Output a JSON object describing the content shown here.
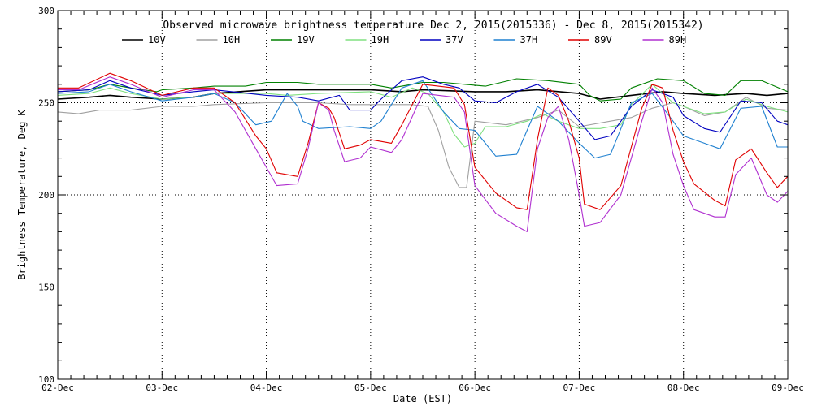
{
  "chart_data": {
    "type": "line",
    "title": "Observed microwave brightness temperature Dec  2, 2015(2015336) - Dec  8, 2015(2015342)",
    "xlabel": "Date (EST)",
    "ylabel": "Brightness Temperature, Deg K",
    "xlim": [
      0,
      7
    ],
    "ylim": [
      100,
      300
    ],
    "grid": true,
    "grid_style": "dotted",
    "legend_position": "top",
    "x_tick_labels": [
      "02-Dec",
      "03-Dec",
      "04-Dec",
      "05-Dec",
      "06-Dec",
      "07-Dec",
      "08-Dec",
      "09-Dec"
    ],
    "y_ticks": [
      100,
      150,
      200,
      250,
      300
    ],
    "y_tick_labels": [
      "100",
      "150",
      "200",
      "250",
      "300"
    ],
    "x_unit": "days since 02-Dec 00:00 EST",
    "series": [
      {
        "name": "10V",
        "color": "#000000",
        "points": [
          [
            0,
            252
          ],
          [
            0.3,
            253
          ],
          [
            0.5,
            254
          ],
          [
            0.7,
            253
          ],
          [
            1.0,
            252
          ],
          [
            1.3,
            253
          ],
          [
            1.5,
            255
          ],
          [
            2.0,
            257
          ],
          [
            2.5,
            257
          ],
          [
            3.0,
            257
          ],
          [
            3.3,
            256
          ],
          [
            3.5,
            257
          ],
          [
            4.0,
            256
          ],
          [
            4.3,
            256
          ],
          [
            4.6,
            257
          ],
          [
            5.0,
            255
          ],
          [
            5.2,
            252
          ],
          [
            5.5,
            254
          ],
          [
            5.8,
            256
          ],
          [
            6.0,
            255
          ],
          [
            6.3,
            254
          ],
          [
            6.6,
            255
          ],
          [
            6.8,
            254
          ],
          [
            7.0,
            255
          ]
        ]
      },
      {
        "name": "10H",
        "color": "#a0a0a0",
        "points": [
          [
            0,
            245
          ],
          [
            0.2,
            244
          ],
          [
            0.4,
            246
          ],
          [
            0.7,
            246
          ],
          [
            1.0,
            248
          ],
          [
            1.3,
            248
          ],
          [
            1.5,
            249
          ],
          [
            2.0,
            250
          ],
          [
            2.5,
            250
          ],
          [
            2.8,
            249
          ],
          [
            3.0,
            249
          ],
          [
            3.2,
            249
          ],
          [
            3.4,
            249
          ],
          [
            3.55,
            248
          ],
          [
            3.65,
            235
          ],
          [
            3.75,
            215
          ],
          [
            3.85,
            204
          ],
          [
            3.92,
            204
          ],
          [
            4.0,
            240
          ],
          [
            4.3,
            238
          ],
          [
            4.6,
            242
          ],
          [
            4.8,
            246
          ],
          [
            5.0,
            237
          ],
          [
            5.3,
            240
          ],
          [
            5.5,
            242
          ],
          [
            5.7,
            247
          ],
          [
            5.9,
            250
          ],
          [
            6.0,
            248
          ],
          [
            6.2,
            243
          ],
          [
            6.4,
            245
          ],
          [
            6.6,
            253
          ],
          [
            6.8,
            247
          ],
          [
            7.0,
            246
          ]
        ]
      },
      {
        "name": "19V",
        "color": "#008000",
        "points": [
          [
            0,
            256
          ],
          [
            0.3,
            257
          ],
          [
            0.5,
            260
          ],
          [
            0.7,
            258
          ],
          [
            0.95,
            256
          ],
          [
            1.0,
            257
          ],
          [
            1.3,
            258
          ],
          [
            1.5,
            259
          ],
          [
            1.8,
            259
          ],
          [
            2.0,
            261
          ],
          [
            2.3,
            261
          ],
          [
            2.5,
            260
          ],
          [
            3.0,
            260
          ],
          [
            3.2,
            258
          ],
          [
            3.5,
            261
          ],
          [
            3.7,
            261
          ],
          [
            3.9,
            260
          ],
          [
            4.1,
            259
          ],
          [
            4.4,
            263
          ],
          [
            4.7,
            262
          ],
          [
            5.0,
            260
          ],
          [
            5.1,
            254
          ],
          [
            5.2,
            251
          ],
          [
            5.4,
            252
          ],
          [
            5.5,
            258
          ],
          [
            5.75,
            263
          ],
          [
            6.0,
            262
          ],
          [
            6.2,
            255
          ],
          [
            6.4,
            254
          ],
          [
            6.55,
            262
          ],
          [
            6.75,
            262
          ],
          [
            7.0,
            256
          ]
        ]
      },
      {
        "name": "19H",
        "color": "#80e080",
        "points": [
          [
            0,
            254
          ],
          [
            0.3,
            255
          ],
          [
            0.5,
            258
          ],
          [
            0.7,
            255
          ],
          [
            1.0,
            252
          ],
          [
            1.3,
            253
          ],
          [
            1.5,
            255
          ],
          [
            2.0,
            255
          ],
          [
            2.2,
            254
          ],
          [
            2.5,
            255
          ],
          [
            3.0,
            256
          ],
          [
            3.2,
            253
          ],
          [
            3.4,
            258
          ],
          [
            3.55,
            255
          ],
          [
            3.7,
            245
          ],
          [
            3.8,
            233
          ],
          [
            3.9,
            226
          ],
          [
            4.0,
            228
          ],
          [
            4.1,
            237
          ],
          [
            4.3,
            237
          ],
          [
            4.5,
            240
          ],
          [
            4.65,
            244
          ],
          [
            4.8,
            240
          ],
          [
            5.0,
            236
          ],
          [
            5.2,
            236
          ],
          [
            5.4,
            238
          ],
          [
            5.5,
            249
          ],
          [
            5.7,
            260
          ],
          [
            5.9,
            250
          ],
          [
            6.0,
            248
          ],
          [
            6.2,
            244
          ],
          [
            6.4,
            245
          ],
          [
            6.6,
            252
          ],
          [
            6.8,
            248
          ],
          [
            7.0,
            245
          ]
        ]
      },
      {
        "name": "37V",
        "color": "#0000c0",
        "points": [
          [
            0,
            256
          ],
          [
            0.3,
            257
          ],
          [
            0.5,
            262
          ],
          [
            0.7,
            258
          ],
          [
            1.0,
            254
          ],
          [
            1.3,
            256
          ],
          [
            1.5,
            257
          ],
          [
            2.0,
            254
          ],
          [
            2.3,
            253
          ],
          [
            2.5,
            251
          ],
          [
            2.7,
            254
          ],
          [
            2.8,
            246
          ],
          [
            3.0,
            246
          ],
          [
            3.1,
            252
          ],
          [
            3.3,
            262
          ],
          [
            3.5,
            264
          ],
          [
            3.7,
            260
          ],
          [
            3.85,
            258
          ],
          [
            4.0,
            251
          ],
          [
            4.2,
            250
          ],
          [
            4.4,
            256
          ],
          [
            4.6,
            260
          ],
          [
            4.8,
            253
          ],
          [
            5.0,
            240
          ],
          [
            5.15,
            230
          ],
          [
            5.3,
            232
          ],
          [
            5.5,
            248
          ],
          [
            5.7,
            257
          ],
          [
            5.9,
            253
          ],
          [
            6.0,
            243
          ],
          [
            6.2,
            236
          ],
          [
            6.35,
            234
          ],
          [
            6.55,
            251
          ],
          [
            6.75,
            250
          ],
          [
            6.9,
            240
          ],
          [
            7.0,
            238
          ]
        ]
      },
      {
        "name": "37H",
        "color": "#1f80d0",
        "points": [
          [
            0,
            255
          ],
          [
            0.3,
            256
          ],
          [
            0.5,
            260
          ],
          [
            0.7,
            256
          ],
          [
            1.0,
            251
          ],
          [
            1.3,
            253
          ],
          [
            1.5,
            255
          ],
          [
            1.7,
            250
          ],
          [
            1.9,
            238
          ],
          [
            2.05,
            240
          ],
          [
            2.2,
            255
          ],
          [
            2.3,
            248
          ],
          [
            2.35,
            240
          ],
          [
            2.5,
            236
          ],
          [
            2.8,
            237
          ],
          [
            3.0,
            236
          ],
          [
            3.1,
            240
          ],
          [
            3.3,
            258
          ],
          [
            3.5,
            262
          ],
          [
            3.7,
            245
          ],
          [
            3.85,
            236
          ],
          [
            4.0,
            235
          ],
          [
            4.1,
            228
          ],
          [
            4.2,
            221
          ],
          [
            4.4,
            222
          ],
          [
            4.6,
            248
          ],
          [
            4.8,
            240
          ],
          [
            5.0,
            228
          ],
          [
            5.15,
            220
          ],
          [
            5.3,
            222
          ],
          [
            5.5,
            250
          ],
          [
            5.7,
            255
          ],
          [
            5.9,
            240
          ],
          [
            6.0,
            232
          ],
          [
            6.2,
            228
          ],
          [
            6.35,
            225
          ],
          [
            6.55,
            247
          ],
          [
            6.75,
            248
          ],
          [
            6.9,
            226
          ],
          [
            7.0,
            226
          ]
        ]
      },
      {
        "name": "89V",
        "color": "#e00000",
        "points": [
          [
            0,
            258
          ],
          [
            0.2,
            258
          ],
          [
            0.5,
            266
          ],
          [
            0.7,
            262
          ],
          [
            1.0,
            254
          ],
          [
            1.3,
            258
          ],
          [
            1.5,
            258
          ],
          [
            1.7,
            250
          ],
          [
            1.9,
            232
          ],
          [
            2.0,
            225
          ],
          [
            2.1,
            212
          ],
          [
            2.3,
            210
          ],
          [
            2.4,
            228
          ],
          [
            2.5,
            250
          ],
          [
            2.6,
            247
          ],
          [
            2.65,
            242
          ],
          [
            2.75,
            225
          ],
          [
            2.9,
            227
          ],
          [
            3.0,
            230
          ],
          [
            3.2,
            228
          ],
          [
            3.3,
            238
          ],
          [
            3.5,
            260
          ],
          [
            3.8,
            258
          ],
          [
            3.9,
            249
          ],
          [
            4.0,
            215
          ],
          [
            4.2,
            201
          ],
          [
            4.4,
            193
          ],
          [
            4.5,
            192
          ],
          [
            4.6,
            230
          ],
          [
            4.7,
            258
          ],
          [
            4.8,
            254
          ],
          [
            4.9,
            240
          ],
          [
            5.0,
            220
          ],
          [
            5.05,
            195
          ],
          [
            5.2,
            192
          ],
          [
            5.4,
            205
          ],
          [
            5.6,
            247
          ],
          [
            5.7,
            260
          ],
          [
            5.8,
            258
          ],
          [
            5.9,
            235
          ],
          [
            6.0,
            218
          ],
          [
            6.1,
            206
          ],
          [
            6.3,
            197
          ],
          [
            6.4,
            194
          ],
          [
            6.5,
            219
          ],
          [
            6.65,
            225
          ],
          [
            6.8,
            212
          ],
          [
            6.9,
            204
          ],
          [
            7.0,
            210
          ]
        ]
      },
      {
        "name": "89H",
        "color": "#b030d0",
        "points": [
          [
            0,
            257
          ],
          [
            0.2,
            257
          ],
          [
            0.5,
            264
          ],
          [
            0.7,
            260
          ],
          [
            1.0,
            253
          ],
          [
            1.3,
            257
          ],
          [
            1.5,
            257
          ],
          [
            1.7,
            245
          ],
          [
            1.9,
            225
          ],
          [
            2.0,
            215
          ],
          [
            2.1,
            205
          ],
          [
            2.3,
            206
          ],
          [
            2.4,
            225
          ],
          [
            2.5,
            250
          ],
          [
            2.6,
            246
          ],
          [
            2.65,
            235
          ],
          [
            2.75,
            218
          ],
          [
            2.9,
            220
          ],
          [
            3.0,
            226
          ],
          [
            3.2,
            223
          ],
          [
            3.3,
            230
          ],
          [
            3.5,
            255
          ],
          [
            3.8,
            253
          ],
          [
            3.9,
            245
          ],
          [
            4.0,
            205
          ],
          [
            4.2,
            190
          ],
          [
            4.4,
            183
          ],
          [
            4.5,
            180
          ],
          [
            4.6,
            225
          ],
          [
            4.7,
            242
          ],
          [
            4.8,
            248
          ],
          [
            4.9,
            230
          ],
          [
            5.0,
            200
          ],
          [
            5.05,
            183
          ],
          [
            5.2,
            185
          ],
          [
            5.4,
            200
          ],
          [
            5.6,
            240
          ],
          [
            5.7,
            258
          ],
          [
            5.8,
            250
          ],
          [
            5.9,
            222
          ],
          [
            6.0,
            205
          ],
          [
            6.1,
            192
          ],
          [
            6.3,
            188
          ],
          [
            6.4,
            188
          ],
          [
            6.5,
            211
          ],
          [
            6.65,
            220
          ],
          [
            6.8,
            200
          ],
          [
            6.9,
            196
          ],
          [
            7.0,
            202
          ]
        ]
      }
    ]
  }
}
